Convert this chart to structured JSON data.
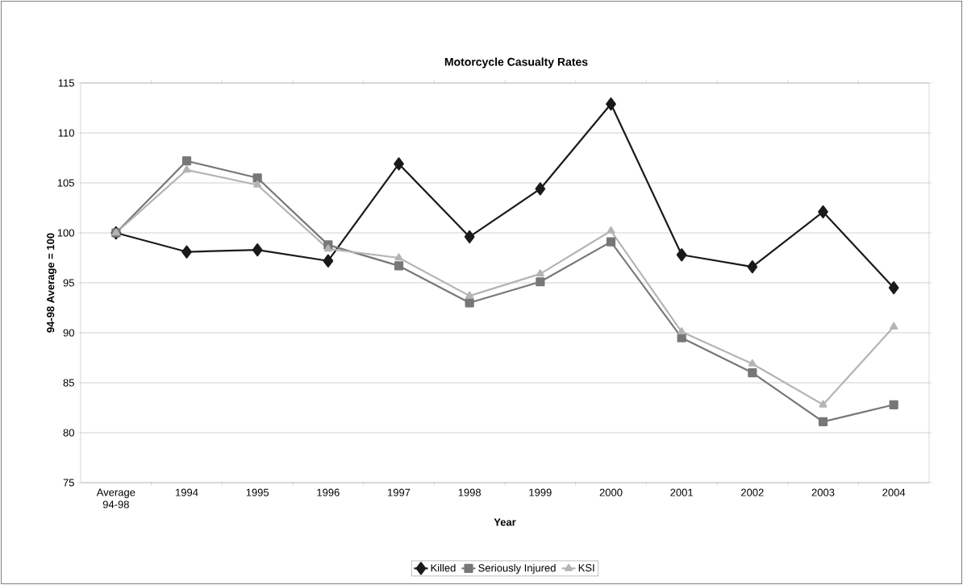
{
  "chart_data": {
    "type": "line",
    "title": "Motorcycle Casualty Rates",
    "xlabel": "Year",
    "ylabel": "94-98 Average = 100",
    "categories": [
      "Average 94-98",
      "1994",
      "1995",
      "1996",
      "1997",
      "1998",
      "1999",
      "2000",
      "2001",
      "2002",
      "2003",
      "2004"
    ],
    "series": [
      {
        "name": "Killed",
        "color": "#1a1a1a",
        "marker": "diamond",
        "values": [
          100,
          98.1,
          98.3,
          97.2,
          106.9,
          99.6,
          104.4,
          112.9,
          97.8,
          96.6,
          102.1,
          94.5
        ]
      },
      {
        "name": "Seriously Injured",
        "color": "#777777",
        "marker": "square",
        "values": [
          100,
          107.2,
          105.5,
          98.8,
          96.7,
          93.0,
          95.1,
          99.1,
          89.5,
          86.0,
          81.1,
          82.8
        ]
      },
      {
        "name": "KSI",
        "color": "#b4b4b4",
        "marker": "triangle",
        "values": [
          100,
          106.3,
          104.8,
          98.4,
          97.5,
          93.7,
          95.9,
          100.2,
          90.1,
          86.9,
          82.8,
          90.6
        ]
      }
    ],
    "ylim": [
      75,
      115
    ],
    "yticks": [
      75,
      80,
      85,
      90,
      95,
      100,
      105,
      110,
      115
    ],
    "grid": "y",
    "legend": "bottom",
    "line_style": "solid"
  }
}
